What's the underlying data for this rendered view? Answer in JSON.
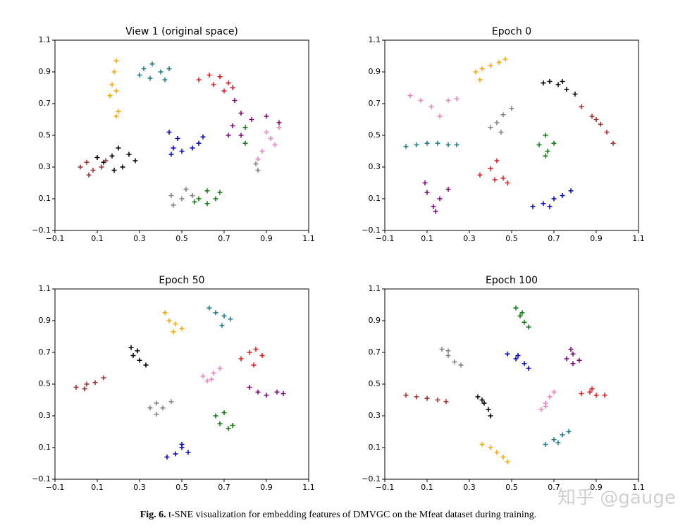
{
  "chart_data": [
    {
      "type": "scatter",
      "title": "View 1 (original space)",
      "xlim": [
        -0.1,
        1.1
      ],
      "ylim": [
        -0.1,
        1.1
      ],
      "xticks": [
        {
          "value": -0.1,
          "label": "−0.1"
        },
        0.1,
        0.3,
        0.5,
        0.7,
        0.9,
        1.1
      ],
      "yticks": [
        {
          "value": -0.1,
          "label": "−0.1"
        },
        0.1,
        0.3,
        0.5,
        0.7,
        0.9,
        1.1
      ],
      "series": [
        {
          "color": "#ffa500",
          "x": [
            0.19,
            0.18,
            0.17,
            0.19,
            0.16,
            0.2,
            0.19
          ],
          "y": [
            0.97,
            0.9,
            0.82,
            0.78,
            0.75,
            0.65,
            0.62
          ]
        },
        {
          "color": "#1a7a8a",
          "x": [
            0.32,
            0.36,
            0.4,
            0.44,
            0.35,
            0.42,
            0.3
          ],
          "y": [
            0.92,
            0.95,
            0.9,
            0.92,
            0.86,
            0.85,
            0.88
          ]
        },
        {
          "color": "#e41a1c",
          "x": [
            0.58,
            0.63,
            0.68,
            0.72,
            0.74,
            0.65,
            0.7
          ],
          "y": [
            0.85,
            0.88,
            0.87,
            0.83,
            0.8,
            0.82,
            0.78
          ]
        },
        {
          "color": "#800080",
          "x": [
            0.75,
            0.78,
            0.74,
            0.78,
            0.83,
            0.9,
            0.96,
            0.72
          ],
          "y": [
            0.72,
            0.64,
            0.56,
            0.5,
            0.6,
            0.62,
            0.58,
            0.5
          ]
        },
        {
          "color": "#f080c0",
          "x": [
            0.9,
            0.92,
            0.88,
            0.96,
            0.94,
            0.86
          ],
          "y": [
            0.52,
            0.48,
            0.4,
            0.55,
            0.44,
            0.35
          ]
        },
        {
          "color": "#0a7a0a",
          "x": [
            0.8,
            0.8,
            0.58,
            0.62,
            0.66,
            0.68,
            0.62,
            0.56
          ],
          "y": [
            0.55,
            0.45,
            0.1,
            0.07,
            0.1,
            0.14,
            0.15,
            0.08
          ]
        },
        {
          "color": "#808080",
          "x": [
            0.45,
            0.5,
            0.46,
            0.52,
            0.55,
            0.86,
            0.85
          ],
          "y": [
            0.12,
            0.1,
            0.06,
            0.16,
            0.12,
            0.28,
            0.32
          ]
        },
        {
          "color": "#0000cd",
          "x": [
            0.44,
            0.48,
            0.46,
            0.5,
            0.55,
            0.58,
            0.6,
            0.45
          ],
          "y": [
            0.52,
            0.48,
            0.42,
            0.4,
            0.42,
            0.45,
            0.49,
            0.38
          ]
        },
        {
          "color": "#000000",
          "x": [
            0.13,
            0.17,
            0.2,
            0.22,
            0.25,
            0.18,
            0.28,
            0.1
          ],
          "y": [
            0.33,
            0.37,
            0.42,
            0.3,
            0.38,
            0.28,
            0.34,
            0.36
          ]
        },
        {
          "color": "#a52a2a",
          "x": [
            0.02,
            0.05,
            0.08,
            0.12,
            0.06,
            0.14
          ],
          "y": [
            0.3,
            0.33,
            0.28,
            0.3,
            0.25,
            0.34
          ]
        }
      ]
    },
    {
      "type": "scatter",
      "title": "Epoch 0",
      "xlim": [
        -0.1,
        1.1
      ],
      "ylim": [
        -0.1,
        1.1
      ],
      "xticks": [
        {
          "value": -0.1,
          "label": "−0.1"
        },
        0.1,
        0.3,
        0.5,
        0.7,
        0.9,
        1.1
      ],
      "yticks": [
        {
          "value": -0.1,
          "label": "−0.1"
        },
        0.1,
        0.3,
        0.5,
        0.7,
        0.9,
        1.1
      ],
      "series": [
        {
          "color": "#ffa500",
          "x": [
            0.33,
            0.36,
            0.4,
            0.44,
            0.35,
            0.47
          ],
          "y": [
            0.9,
            0.92,
            0.94,
            0.96,
            0.85,
            0.98
          ]
        },
        {
          "color": "#000000",
          "x": [
            0.65,
            0.68,
            0.72,
            0.76,
            0.8,
            0.74
          ],
          "y": [
            0.83,
            0.84,
            0.82,
            0.79,
            0.76,
            0.84
          ]
        },
        {
          "color": "#a52a2a",
          "x": [
            0.83,
            0.88,
            0.92,
            0.95,
            0.98,
            0.9
          ],
          "y": [
            0.68,
            0.62,
            0.57,
            0.52,
            0.45,
            0.6
          ]
        },
        {
          "color": "#f080c0",
          "x": [
            0.02,
            0.07,
            0.12,
            0.16,
            0.2,
            0.24
          ],
          "y": [
            0.75,
            0.72,
            0.68,
            0.62,
            0.72,
            0.73
          ]
        },
        {
          "color": "#808080",
          "x": [
            0.4,
            0.43,
            0.46,
            0.5,
            0.45
          ],
          "y": [
            0.55,
            0.58,
            0.63,
            0.67,
            0.52
          ]
        },
        {
          "color": "#1a7a8a",
          "x": [
            0.0,
            0.05,
            0.1,
            0.15,
            0.2,
            0.24
          ],
          "y": [
            0.43,
            0.44,
            0.45,
            0.45,
            0.44,
            0.44
          ]
        },
        {
          "color": "#0a7a0a",
          "x": [
            0.66,
            0.63,
            0.67,
            0.7,
            0.66
          ],
          "y": [
            0.5,
            0.44,
            0.4,
            0.45,
            0.37
          ]
        },
        {
          "color": "#e41a1c",
          "x": [
            0.35,
            0.4,
            0.43,
            0.46,
            0.42,
            0.48
          ],
          "y": [
            0.25,
            0.29,
            0.34,
            0.23,
            0.22,
            0.2
          ]
        },
        {
          "color": "#800080",
          "x": [
            0.09,
            0.1,
            0.13,
            0.16,
            0.2,
            0.14
          ],
          "y": [
            0.2,
            0.14,
            0.05,
            0.1,
            0.16,
            0.02
          ]
        },
        {
          "color": "#0000cd",
          "x": [
            0.6,
            0.65,
            0.7,
            0.74,
            0.78,
            0.68
          ],
          "y": [
            0.05,
            0.07,
            0.1,
            0.12,
            0.15,
            0.05
          ]
        }
      ]
    },
    {
      "type": "scatter",
      "title": "Epoch 50",
      "xlim": [
        -0.1,
        1.1
      ],
      "ylim": [
        -0.1,
        1.1
      ],
      "xticks": [
        {
          "value": -0.1,
          "label": "−0.1"
        },
        0.1,
        0.3,
        0.5,
        0.7,
        0.9,
        1.1
      ],
      "yticks": [
        {
          "value": -0.1,
          "label": "−0.1"
        },
        0.1,
        0.3,
        0.5,
        0.7,
        0.9,
        1.1
      ],
      "series": [
        {
          "color": "#ffa500",
          "x": [
            0.42,
            0.44,
            0.47,
            0.5,
            0.46
          ],
          "y": [
            0.95,
            0.9,
            0.88,
            0.85,
            0.83
          ]
        },
        {
          "color": "#1a7a8a",
          "x": [
            0.63,
            0.66,
            0.7,
            0.73,
            0.69
          ],
          "y": [
            0.98,
            0.95,
            0.93,
            0.91,
            0.87
          ]
        },
        {
          "color": "#000000",
          "x": [
            0.26,
            0.27,
            0.3,
            0.33,
            0.29
          ],
          "y": [
            0.73,
            0.68,
            0.65,
            0.62,
            0.71
          ]
        },
        {
          "color": "#e41a1c",
          "x": [
            0.78,
            0.82,
            0.85,
            0.88,
            0.84
          ],
          "y": [
            0.66,
            0.7,
            0.72,
            0.68,
            0.62
          ]
        },
        {
          "color": "#f080c0",
          "x": [
            0.6,
            0.62,
            0.65,
            0.68,
            0.64
          ],
          "y": [
            0.55,
            0.52,
            0.57,
            0.6,
            0.53
          ]
        },
        {
          "color": "#a52a2a",
          "x": [
            0.0,
            0.05,
            0.09,
            0.13,
            0.04
          ],
          "y": [
            0.48,
            0.5,
            0.51,
            0.54,
            0.47
          ]
        },
        {
          "color": "#800080",
          "x": [
            0.82,
            0.86,
            0.9,
            0.95,
            0.98
          ],
          "y": [
            0.48,
            0.45,
            0.43,
            0.45,
            0.44
          ]
        },
        {
          "color": "#808080",
          "x": [
            0.35,
            0.38,
            0.41,
            0.45,
            0.38
          ],
          "y": [
            0.35,
            0.38,
            0.35,
            0.39,
            0.31
          ]
        },
        {
          "color": "#0a7a0a",
          "x": [
            0.66,
            0.68,
            0.72,
            0.7,
            0.74
          ],
          "y": [
            0.3,
            0.25,
            0.22,
            0.32,
            0.24
          ]
        },
        {
          "color": "#0000cd",
          "x": [
            0.43,
            0.47,
            0.5,
            0.53,
            0.5
          ],
          "y": [
            0.04,
            0.06,
            0.1,
            0.07,
            0.12
          ]
        }
      ]
    },
    {
      "type": "scatter",
      "title": "Epoch 100",
      "xlim": [
        -0.1,
        1.1
      ],
      "ylim": [
        -0.1,
        1.1
      ],
      "xticks": [
        {
          "value": -0.1,
          "label": "−0.1"
        },
        0.1,
        0.3,
        0.5,
        0.7,
        0.9,
        1.1
      ],
      "yticks": [
        {
          "value": -0.1,
          "label": "−0.1"
        },
        0.1,
        0.3,
        0.5,
        0.7,
        0.9,
        1.1
      ],
      "series": [
        {
          "color": "#0a7a0a",
          "x": [
            0.52,
            0.54,
            0.56,
            0.58,
            0.55
          ],
          "y": [
            0.98,
            0.93,
            0.89,
            0.86,
            0.95
          ]
        },
        {
          "color": "#808080",
          "x": [
            0.17,
            0.2,
            0.23,
            0.26,
            0.2
          ],
          "y": [
            0.72,
            0.68,
            0.64,
            0.62,
            0.71
          ]
        },
        {
          "color": "#0000cd",
          "x": [
            0.48,
            0.52,
            0.56,
            0.58,
            0.53
          ],
          "y": [
            0.69,
            0.66,
            0.63,
            0.6,
            0.68
          ]
        },
        {
          "color": "#800080",
          "x": [
            0.78,
            0.76,
            0.79,
            0.82,
            0.79
          ],
          "y": [
            0.72,
            0.66,
            0.63,
            0.65,
            0.69
          ]
        },
        {
          "color": "#f080c0",
          "x": [
            0.64,
            0.66,
            0.68,
            0.7,
            0.66
          ],
          "y": [
            0.34,
            0.38,
            0.42,
            0.45,
            0.36
          ]
        },
        {
          "color": "#e41a1c",
          "x": [
            0.83,
            0.87,
            0.9,
            0.94,
            0.88
          ],
          "y": [
            0.44,
            0.45,
            0.43,
            0.43,
            0.47
          ]
        },
        {
          "color": "#a52a2a",
          "x": [
            0.0,
            0.05,
            0.1,
            0.15,
            0.19
          ],
          "y": [
            0.43,
            0.42,
            0.41,
            0.4,
            0.39
          ]
        },
        {
          "color": "#000000",
          "x": [
            0.34,
            0.37,
            0.39,
            0.4,
            0.36
          ],
          "y": [
            0.42,
            0.38,
            0.34,
            0.3,
            0.4
          ]
        },
        {
          "color": "#1a7a8a",
          "x": [
            0.66,
            0.7,
            0.74,
            0.77,
            0.72
          ],
          "y": [
            0.12,
            0.15,
            0.18,
            0.2,
            0.13
          ]
        },
        {
          "color": "#ffa500",
          "x": [
            0.36,
            0.4,
            0.43,
            0.46,
            0.48
          ],
          "y": [
            0.12,
            0.1,
            0.07,
            0.04,
            0.01
          ]
        }
      ]
    }
  ],
  "caption": {
    "label": "Fig. 6.",
    "text": "t-SNE visualization for embedding features of DMVGC on the Mfeat dataset during training."
  },
  "watermark": "知乎 @gauge"
}
